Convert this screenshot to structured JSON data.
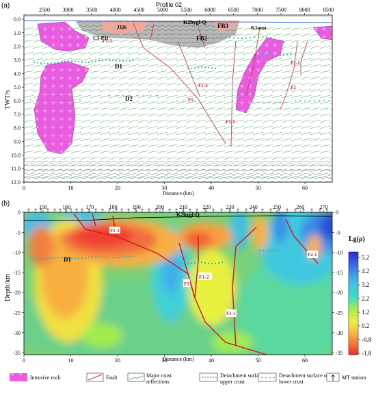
{
  "panel_a": {
    "label": "(a)",
    "profile_label": "Profile 02",
    "top_ticks": [
      "2500",
      "3000",
      "3500",
      "4000",
      "4500",
      "5000",
      "5500",
      "6000",
      "6500",
      "7000",
      "7500",
      "8000",
      "8500"
    ],
    "bottom_ticks": [
      "0",
      "10",
      "20",
      "30",
      "40",
      "50",
      "60"
    ],
    "y_ticks": [
      "0.0",
      "1.0",
      "2.0",
      "3.0",
      "4.0",
      "5.0",
      "6.0",
      "7.0",
      "8.0",
      "9.0",
      "10.0",
      "11.0",
      "12.0"
    ],
    "ylabel": "TWT/s",
    "xlabel": "Distance (km)",
    "annotations": {
      "k2bygl": "K2bygl-Q",
      "fb3": "FB3",
      "fb2": "FB2",
      "j1jb": "J1jb",
      "c3p1l": "C3-P1l",
      "k1mnt": "K1mnt",
      "d1": "D1",
      "d2": "D2",
      "f1_3": "F1-3",
      "f1_2": "F1-2",
      "f1": "F1",
      "f1_1": "F1-1",
      "f2": "F2",
      "f2_1": "F2-1"
    }
  },
  "panel_b": {
    "label": "(b)",
    "top_ticks": [
      "150",
      "160",
      "170",
      "180",
      "190",
      "200",
      "210",
      "220",
      "230",
      "240",
      "250",
      "260",
      "270"
    ],
    "bottom_ticks": [
      "0",
      "10",
      "20",
      "30",
      "40",
      "50",
      "60"
    ],
    "left_ticks": [
      "0",
      "-5",
      "-10",
      "-15",
      "-20",
      "-25",
      "-30",
      "-35"
    ],
    "right_ticks": [
      "0",
      "-5",
      "-10",
      "-15",
      "-20",
      "-25",
      "-30",
      "-35"
    ],
    "ylabel": "Depth/km",
    "xlabel": "Distance (km)",
    "annotations": {
      "k2bygl": "K2bygl-Q",
      "d1": "D1",
      "f1_3": "F1-3",
      "f1": "F1",
      "f1_2": "F1-2",
      "f1_1": "F1-1",
      "f2_1": "F2-1"
    },
    "colorbar": {
      "title": "Lg(ρ)",
      "ticks": [
        "5.2",
        "4.2",
        "3.2",
        "2.2",
        "1.2",
        "0.2",
        "-0.8",
        "-1.8"
      ]
    }
  },
  "legend": {
    "items": [
      {
        "label": "Intrusive rock"
      },
      {
        "label": "Fault"
      },
      {
        "label": "Major crust reflections"
      },
      {
        "label": "Detachment surface of upper crust"
      },
      {
        "label": "Detachment surface of lower crust"
      },
      {
        "label": "MT station"
      }
    ]
  }
}
